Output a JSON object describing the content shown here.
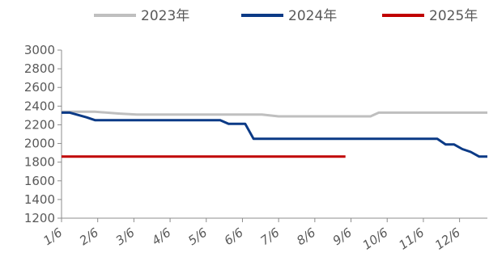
{
  "chart_data": {
    "type": "line",
    "title": "",
    "xlabel": "",
    "ylabel": "",
    "ylim": [
      1200,
      3000
    ],
    "yticks": [
      "3000",
      "2800",
      "2600",
      "2400",
      "2200",
      "2000",
      "1800",
      "1600",
      "1400",
      "1200"
    ],
    "x_tick_labels": [
      "1/6",
      "2/6",
      "3/6",
      "4/6",
      "5/6",
      "6/6",
      "7/6",
      "8/6",
      "9/6",
      "10/6",
      "11/6",
      "12/6"
    ],
    "x_unit": "week",
    "x_range": [
      0,
      51
    ],
    "grid": false,
    "legend_position": "top",
    "series": [
      {
        "name": "2023年",
        "color": "#BFBFBF",
        "points": [
          [
            0,
            2340
          ],
          [
            4,
            2340
          ],
          [
            7,
            2320
          ],
          [
            9,
            2310
          ],
          [
            24,
            2310
          ],
          [
            26,
            2290
          ],
          [
            30,
            2290
          ],
          [
            37,
            2290
          ],
          [
            38,
            2330
          ],
          [
            51,
            2330
          ]
        ]
      },
      {
        "name": "2024年",
        "color": "#0B3A86",
        "points": [
          [
            0,
            2330
          ],
          [
            1,
            2330
          ],
          [
            3,
            2280
          ],
          [
            4,
            2250
          ],
          [
            9,
            2250
          ],
          [
            19,
            2250
          ],
          [
            20,
            2210
          ],
          [
            22,
            2210
          ],
          [
            23,
            2050
          ],
          [
            45,
            2050
          ],
          [
            46,
            1990
          ],
          [
            47,
            1990
          ],
          [
            48,
            1940
          ],
          [
            49,
            1910
          ],
          [
            50,
            1860
          ],
          [
            51,
            1860
          ]
        ]
      },
      {
        "name": "2025年",
        "color": "#C00000",
        "points": [
          [
            0,
            1860
          ],
          [
            34,
            1860
          ]
        ]
      }
    ]
  }
}
